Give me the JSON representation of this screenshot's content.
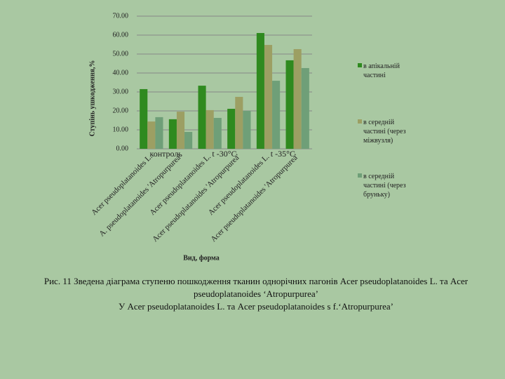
{
  "chart_data": {
    "type": "bar",
    "y_label": "Ступінь ушкодження,%",
    "x_label": "Вид, форма",
    "categories": [
      "Acer pseudoplatanoides L.",
      "A. pseudoplatanoides 'Atropurpurea'",
      "Acer pseudoplatanoides L.",
      "Acer pseudoplatanoides 'Atropurpurea'",
      "Acer pseudoplatanoides L.",
      "Acer pseudoplatanoides 'Atropurpurea'"
    ],
    "groups": [
      "контроль",
      "t -30°C",
      "t -35°C"
    ],
    "series": [
      {
        "name": "в апікальній частині",
        "color": "#2f8a1f",
        "values": [
          31.5,
          15.6,
          33.3,
          21.1,
          61.1,
          46.7
        ]
      },
      {
        "name": "в середній частині (через міжвузля)",
        "color": "#9c9f63",
        "values": [
          14.4,
          19.6,
          20.4,
          27.4,
          54.8,
          52.6
        ]
      },
      {
        "name": "в середній частині (через бруньку)",
        "color": "#6f9f78",
        "values": [
          16.7,
          8.9,
          16.3,
          20.0,
          35.9,
          42.6
        ]
      }
    ],
    "ylim": [
      0,
      70
    ],
    "yticks": [
      {
        "value": 0,
        "label": "0.00"
      },
      {
        "value": 10,
        "label": "10.00"
      },
      {
        "value": 20,
        "label": "20.00"
      },
      {
        "value": 30,
        "label": "30.00"
      },
      {
        "value": 40,
        "label": "40.00"
      },
      {
        "value": 50,
        "label": "50.00"
      },
      {
        "value": 60,
        "label": "60.00"
      },
      {
        "value": 70,
        "label": "70.00"
      }
    ],
    "grid": true
  },
  "caption": [
    "Рис. 11 Зведена діаграма ступеню пошкодження тканин однорічних пагонів Acer pseudoplatanoides L. та Acer pseudoplatanoides ‘Atropurpurea’",
    "У Acer pseudoplatanoides L. та Acer pseudoplatanoides s f.‘Atropurpurea’"
  ]
}
